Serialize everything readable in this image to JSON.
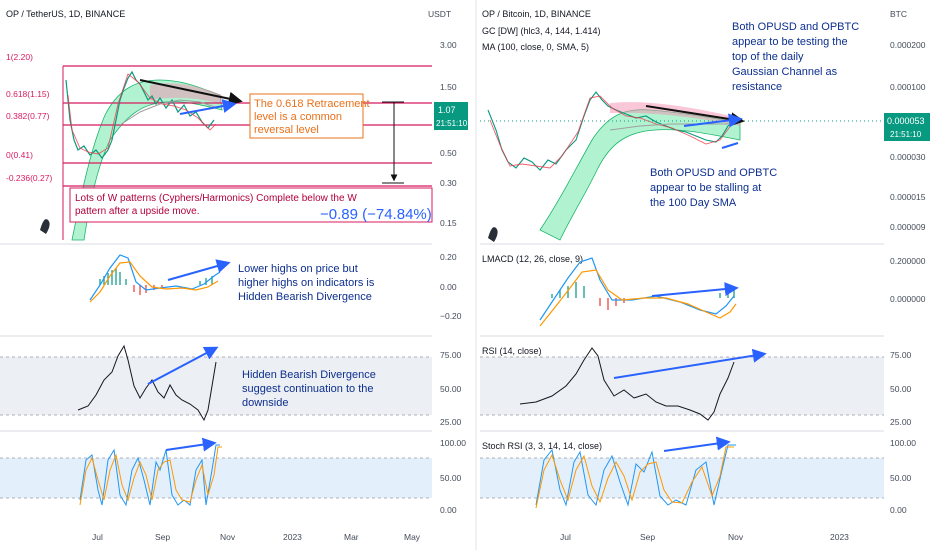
{
  "left": {
    "title": "OP / TetherUS, 1D, BINANCE",
    "currency": "USDT",
    "price_ticks": [
      "3.00",
      "1.50",
      "1.00",
      "0.50",
      "0.30",
      "0.15"
    ],
    "price_badge": "1.07",
    "time_badge": "21:51:10",
    "fib_levels": [
      "1(2.20)",
      "0.618(1.15)",
      "0.382(0.77)",
      "0(0.41)",
      "-0.236(0.27)"
    ],
    "retracement_note": [
      "The 0.618 Retracement",
      "level is a common",
      "reversal level"
    ],
    "w_note": [
      "Lots of W patterns (Cyphers/Harmonics) Complete below the W",
      "pattern after a upside move."
    ],
    "change_label": "−0.89 (−74.84%)",
    "macd_ticks": [
      "0.20",
      "0.00",
      "−0.20"
    ],
    "macd_note": [
      "Lower highs on price but",
      "higher highs on indicators is",
      "Hidden Bearish Divergence"
    ],
    "rsi_ticks": [
      "75.00",
      "50.00",
      "25.00"
    ],
    "rsi_note": [
      "Hidden Bearish Divergence",
      "suggest continuation to the",
      "downside"
    ],
    "stoch_ticks": [
      "100.00",
      "50.00",
      "0.00"
    ],
    "x_labels": [
      "Jul",
      "Sep",
      "Nov",
      "2023",
      "Mar",
      "May"
    ]
  },
  "right": {
    "title": "OP / Bitcoin, 1D, BINANCE",
    "gc_label": "GC [DW] (hlc3, 4, 144, 1.414)",
    "ma_label": "MA (100, close, 0, SMA, 5)",
    "currency": "BTC",
    "price_ticks": [
      "0.000200",
      "0.000100",
      "0.000030",
      "0.000015",
      "0.000009"
    ],
    "price_badge": "0.000053",
    "time_badge": "21:51:10",
    "top_note": [
      "Both OPUSD and OPBTC",
      "appear to be testing the",
      "top of the daily",
      "Gaussian Channel as",
      "resistance"
    ],
    "mid_note": [
      "Both OPUSD and OPBTC",
      "appear to be stalling at",
      "the 100 Day SMA"
    ],
    "macd_title": "LMACD (12, 26, close, 9)",
    "macd_ticks": [
      "0.200000",
      "0.000000"
    ],
    "rsi_title": "RSI (14, close)",
    "rsi_ticks": [
      "75.00",
      "50.00",
      "25.00"
    ],
    "stoch_title": "Stoch RSI (3, 3, 14, 14, close)",
    "stoch_ticks": [
      "100.00",
      "50.00",
      "0.00"
    ],
    "x_labels": [
      "Jul",
      "Sep",
      "Nov",
      "2023"
    ]
  },
  "colors": {
    "fib": "#d81b60",
    "channel_fill": "#52e59a",
    "arrow": "#2962ff",
    "badge": "#089981",
    "macd": "#2196f3",
    "signal": "#ff9800",
    "rsi_band": "#eceff3",
    "stoch_band": "#e3f0fc"
  },
  "chart_data": [
    {
      "type": "line",
      "title": "OP / TetherUS, 1D, BINANCE",
      "x": [
        "Jul",
        "Sep",
        "Nov",
        "2023",
        "Mar",
        "May"
      ],
      "ylabel": "USDT",
      "yscale": "log",
      "last_price": 1.07,
      "change": "−0.89 (−74.84%)",
      "fib_levels": [
        2.2,
        1.15,
        0.77,
        0.41,
        0.27
      ]
    },
    {
      "type": "line",
      "title": "OP / Bitcoin, 1D, BINANCE",
      "x": [
        "Jul",
        "Sep",
        "Nov",
        "2023"
      ],
      "ylabel": "BTC",
      "yscale": "log",
      "last_price": 5.3e-05
    }
  ]
}
